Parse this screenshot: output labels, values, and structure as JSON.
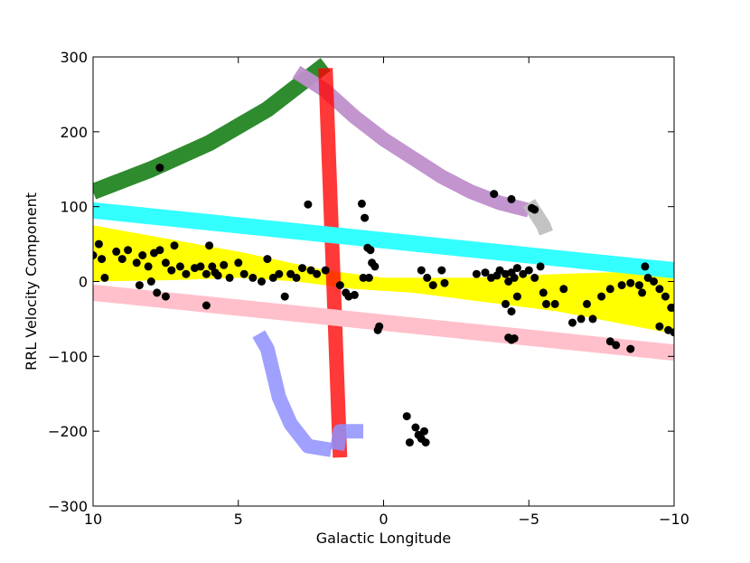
{
  "chart_data": {
    "type": "scatter",
    "title": "",
    "xlabel": "Galactic Longitude",
    "ylabel": "RRL Velocity Component",
    "xlim": [
      10,
      -10
    ],
    "ylim": [
      -300,
      300
    ],
    "x_ticks": [
      10,
      5,
      0,
      -5,
      -10
    ],
    "y_ticks": [
      300,
      200,
      100,
      0,
      -100,
      -200,
      -300
    ],
    "x_tick_labels": [
      "10",
      "5",
      "0",
      "−5",
      "−10"
    ],
    "y_tick_labels": [
      "300",
      "200",
      "100",
      "0",
      "−100",
      "−200",
      "−300"
    ],
    "grid": false,
    "legend": "none",
    "bands": [
      {
        "color": "#ffff00",
        "upper": [
          [
            10,
            75
          ],
          [
            5,
            40
          ],
          [
            2,
            15
          ],
          [
            0,
            5
          ],
          [
            -3,
            5
          ],
          [
            -6,
            10
          ],
          [
            -10,
            15
          ]
        ],
        "lower": [
          [
            10,
            0
          ],
          [
            7,
            2
          ],
          [
            5,
            5
          ],
          [
            3,
            0
          ],
          [
            1,
            -10
          ],
          [
            -1,
            -15
          ],
          [
            -3,
            -25
          ],
          [
            -6,
            -40
          ],
          [
            -10,
            -70
          ]
        ]
      }
    ],
    "curves": [
      {
        "color": "#2e8b2e",
        "opacity": 1.0,
        "width": 18,
        "points": [
          [
            10,
            120
          ],
          [
            8,
            150
          ],
          [
            6,
            185
          ],
          [
            4,
            230
          ],
          [
            2,
            290
          ]
        ]
      },
      {
        "color": "#bf8fcc",
        "opacity": 0.95,
        "width": 16,
        "points": [
          [
            3,
            280
          ],
          [
            2,
            255
          ],
          [
            1,
            220
          ],
          [
            0,
            190
          ],
          [
            -1,
            165
          ],
          [
            -2,
            140
          ],
          [
            -3,
            120
          ],
          [
            -4,
            105
          ],
          [
            -5,
            95
          ]
        ]
      },
      {
        "color": "#bdbdbd",
        "opacity": 0.9,
        "width": 16,
        "points": [
          [
            -5,
            105
          ],
          [
            -5.5,
            75
          ],
          [
            -5.6,
            65
          ]
        ]
      },
      {
        "color": "#ff0000",
        "opacity": 0.78,
        "width": 16,
        "points": [
          [
            2,
            285
          ],
          [
            1.5,
            -235
          ]
        ]
      },
      {
        "color": "#8f8fff",
        "opacity": 0.85,
        "width": 16,
        "points": [
          [
            1.6,
            -225
          ],
          [
            1.5,
            -200
          ],
          [
            0.7,
            -200
          ]
        ]
      },
      {
        "color": "#8f8fff",
        "opacity": 0.85,
        "width": 16,
        "points": [
          [
            1.8,
            -225
          ],
          [
            2.6,
            -220
          ],
          [
            3.2,
            -190
          ],
          [
            3.6,
            -155
          ],
          [
            4.0,
            -90
          ],
          [
            4.3,
            -70
          ]
        ]
      },
      {
        "color": "#33ffff",
        "opacity": 1.0,
        "width": 18,
        "points": [
          [
            10,
            95
          ],
          [
            -10,
            15
          ]
        ]
      },
      {
        "color": "#ffc0cb",
        "opacity": 1.0,
        "width": 18,
        "points": [
          [
            10,
            -15
          ],
          [
            -10,
            -95
          ]
        ]
      }
    ],
    "series": [
      {
        "color": "#000000",
        "points": [
          [
            7.7,
            152
          ],
          [
            2.6,
            103
          ],
          [
            -3.8,
            117
          ],
          [
            -4.4,
            110
          ],
          [
            -5.1,
            98
          ],
          [
            -5.2,
            96
          ],
          [
            0.75,
            104
          ],
          [
            0.65,
            85
          ],
          [
            0.55,
            45
          ],
          [
            0.45,
            42
          ],
          [
            0.4,
            25
          ],
          [
            0.3,
            20
          ],
          [
            0.5,
            5
          ],
          [
            0.7,
            5
          ],
          [
            0.2,
            -65
          ],
          [
            0.15,
            -60
          ],
          [
            -0.8,
            -180
          ],
          [
            -0.9,
            -215
          ],
          [
            -1.1,
            -195
          ],
          [
            -1.2,
            -205
          ],
          [
            -1.3,
            -210
          ],
          [
            -1.4,
            -200
          ],
          [
            -1.45,
            -215
          ],
          [
            -4.3,
            -75
          ],
          [
            -4.4,
            -78
          ],
          [
            -4.5,
            -76
          ],
          [
            -8.0,
            -85
          ],
          [
            -8.5,
            -90
          ],
          [
            -7.8,
            -80
          ],
          [
            -9.0,
            20
          ],
          [
            -9.5,
            -60
          ],
          [
            -9.8,
            -65
          ],
          [
            -10.0,
            -68
          ],
          [
            -10.0,
            -35
          ],
          [
            10.0,
            35
          ],
          [
            9.8,
            50
          ],
          [
            9.7,
            30
          ],
          [
            9.6,
            5
          ],
          [
            9.2,
            40
          ],
          [
            9.0,
            30
          ],
          [
            8.8,
            42
          ],
          [
            8.5,
            25
          ],
          [
            8.3,
            35
          ],
          [
            8.1,
            20
          ],
          [
            7.9,
            38
          ],
          [
            7.7,
            42
          ],
          [
            7.5,
            25
          ],
          [
            7.3,
            15
          ],
          [
            7.2,
            48
          ],
          [
            7.0,
            20
          ],
          [
            6.8,
            10
          ],
          [
            6.5,
            18
          ],
          [
            6.3,
            20
          ],
          [
            6.1,
            10
          ],
          [
            6.0,
            48
          ],
          [
            5.9,
            20
          ],
          [
            5.8,
            12
          ],
          [
            5.7,
            8
          ],
          [
            5.5,
            22
          ],
          [
            5.3,
            5
          ],
          [
            5.0,
            25
          ],
          [
            4.8,
            10
          ],
          [
            4.5,
            5
          ],
          [
            4.2,
            0
          ],
          [
            4.0,
            30
          ],
          [
            3.8,
            5
          ],
          [
            3.6,
            10
          ],
          [
            3.4,
            -20
          ],
          [
            3.2,
            10
          ],
          [
            3.0,
            5
          ],
          [
            2.8,
            18
          ],
          [
            2.5,
            15
          ],
          [
            2.3,
            10
          ],
          [
            2.0,
            15
          ],
          [
            6.1,
            -32
          ],
          [
            8.4,
            -5
          ],
          [
            7.8,
            -15
          ],
          [
            7.5,
            -20
          ],
          [
            8.0,
            0
          ],
          [
            1.5,
            -5
          ],
          [
            1.3,
            -15
          ],
          [
            1.2,
            -20
          ],
          [
            1.0,
            -18
          ],
          [
            -1.3,
            15
          ],
          [
            -1.5,
            5
          ],
          [
            -1.7,
            -5
          ],
          [
            -2.0,
            15
          ],
          [
            -2.1,
            -2
          ],
          [
            -3.2,
            10
          ],
          [
            -3.5,
            12
          ],
          [
            -3.7,
            5
          ],
          [
            -3.9,
            8
          ],
          [
            -4.0,
            15
          ],
          [
            -4.2,
            10
          ],
          [
            -4.3,
            0
          ],
          [
            -4.4,
            12
          ],
          [
            -4.5,
            5
          ],
          [
            -4.6,
            18
          ],
          [
            -4.8,
            10
          ],
          [
            -5.0,
            15
          ],
          [
            -5.2,
            5
          ],
          [
            -5.4,
            20
          ],
          [
            -4.2,
            -30
          ],
          [
            -4.4,
            -40
          ],
          [
            -4.6,
            -20
          ],
          [
            -5.5,
            -15
          ],
          [
            -5.6,
            -30
          ],
          [
            -5.9,
            -30
          ],
          [
            -6.2,
            -10
          ],
          [
            -6.5,
            -55
          ],
          [
            -6.8,
            -50
          ],
          [
            -7.0,
            -30
          ],
          [
            -7.2,
            -50
          ],
          [
            -7.5,
            -20
          ],
          [
            -7.8,
            -10
          ],
          [
            -8.2,
            -5
          ],
          [
            -8.5,
            -2
          ],
          [
            -8.8,
            -5
          ],
          [
            -8.9,
            -15
          ],
          [
            -9.1,
            5
          ],
          [
            -9.3,
            0
          ],
          [
            -9.5,
            -10
          ],
          [
            -9.7,
            -20
          ],
          [
            -9.9,
            -35
          ]
        ]
      }
    ]
  }
}
